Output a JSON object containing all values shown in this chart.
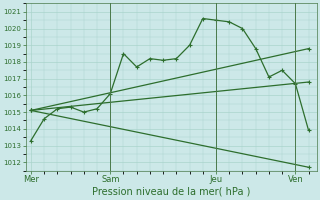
{
  "title": "Pression niveau de la mer( hPa )",
  "bg_color": "#cce8e8",
  "grid_color": "#aad4cc",
  "line_color": "#2d6e2d",
  "vline_color": "#4a7a4a",
  "x_ticks_labels": [
    "Mer",
    "Sam",
    "Jeu",
    "Ven"
  ],
  "x_ticks_pos": [
    0,
    3,
    7,
    10
  ],
  "ylim": [
    1011.5,
    1021.5
  ],
  "yticks": [
    1012,
    1013,
    1014,
    1015,
    1016,
    1017,
    1018,
    1019,
    1020,
    1021
  ],
  "xlim": [
    -0.2,
    10.8
  ],
  "series": [
    {
      "x": [
        0,
        0.5,
        1.0,
        1.5,
        2.0,
        2.5,
        3.0,
        3.5,
        4.0,
        4.5,
        5.0,
        5.5,
        6.0,
        6.5,
        7.0,
        7.5,
        8.0,
        8.5,
        9.0,
        9.5,
        10.0,
        10.5
      ],
      "y": [
        1013.3,
        1014.6,
        1015.2,
        1015.3,
        1015.0,
        1015.2,
        1016.1,
        1018.5,
        1017.7,
        1018.2,
        1018.1,
        1018.2,
        1019.0,
        1020.6,
        1020.5,
        1020.4,
        1020.0,
        1018.8,
        1017.1,
        1017.5,
        1016.7,
        1013.9
      ]
    },
    {
      "x": [
        0,
        10.5
      ],
      "y": [
        1015.1,
        1016.8
      ]
    },
    {
      "x": [
        0,
        10.5
      ],
      "y": [
        1015.1,
        1018.8
      ]
    },
    {
      "x": [
        0,
        10.5
      ],
      "y": [
        1015.1,
        1011.7
      ]
    }
  ],
  "vlines_x": [
    3,
    7,
    10
  ],
  "marker_style": "+",
  "marker_size": 3.5,
  "linewidth": 0.9,
  "ytick_fontsize": 5.0,
  "xtick_fontsize": 6.0,
  "xlabel_fontsize": 7.0
}
